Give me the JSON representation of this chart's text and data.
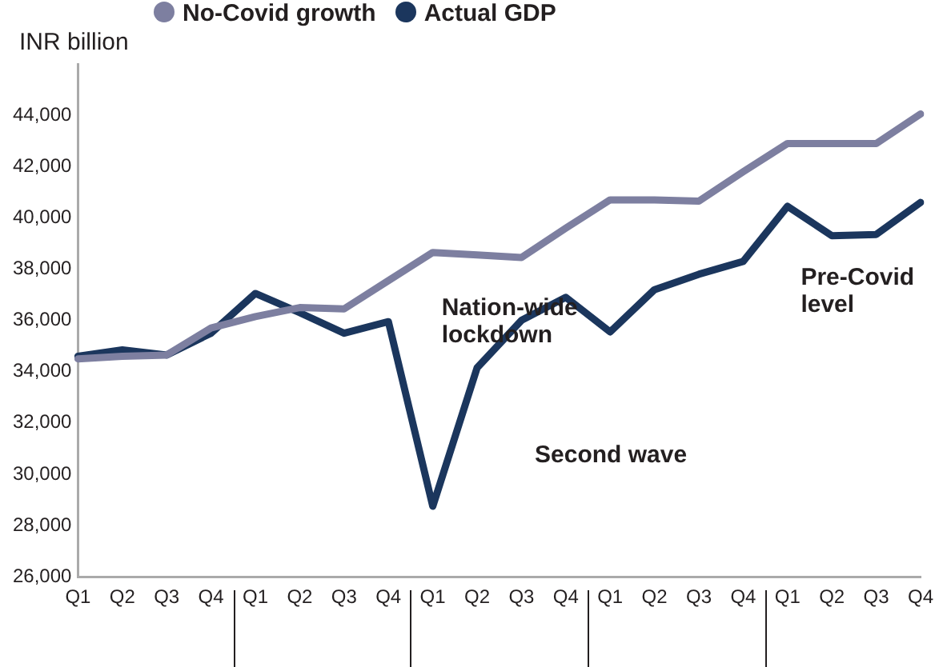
{
  "chart_data": {
    "type": "line",
    "ylabel": "INR billion",
    "legend": "top left",
    "grid": false,
    "marker": "none",
    "line_style": "solid",
    "categories": [
      "Q1",
      "Q2",
      "Q3",
      "Q4",
      "Q1",
      "Q2",
      "Q3",
      "Q4",
      "Q1",
      "Q2",
      "Q3",
      "Q4",
      "Q1",
      "Q2",
      "Q3",
      "Q4",
      "Q1",
      "Q2",
      "Q3",
      "Q4"
    ],
    "series": [
      {
        "name": "No-Covid growth",
        "color": "#7d7fa0",
        "values": [
          34500,
          34600,
          34650,
          35700,
          36150,
          36500,
          36450,
          37550,
          38650,
          38550,
          38450,
          39600,
          40700,
          40700,
          40650,
          41800,
          42900,
          42900,
          42900,
          44050
        ]
      },
      {
        "name": "Actual GDP",
        "color": "#1b365d",
        "values": [
          34600,
          34850,
          34650,
          35500,
          37050,
          36300,
          35500,
          35950,
          28750,
          34150,
          36000,
          36900,
          35550,
          37200,
          37800,
          38300,
          40450,
          39300,
          39350,
          40600
        ]
      }
    ],
    "ylim": [
      26000,
      46000
    ],
    "yticks": [
      {
        "value": 26000,
        "label": "26,000"
      },
      {
        "value": 28000,
        "label": "28,000"
      },
      {
        "value": 30000,
        "label": "30,000"
      },
      {
        "value": 32000,
        "label": "32,000"
      },
      {
        "value": 34000,
        "label": "34,000"
      },
      {
        "value": 36000,
        "label": "36,000"
      },
      {
        "value": 38000,
        "label": "38,000"
      },
      {
        "value": 40000,
        "label": "40,000"
      },
      {
        "value": 42000,
        "label": "42,000"
      },
      {
        "value": 44000,
        "label": "44,000"
      }
    ],
    "annotations": [
      "Nation-wide lockdown",
      "Second wave",
      "Pre-Covid level"
    ]
  }
}
